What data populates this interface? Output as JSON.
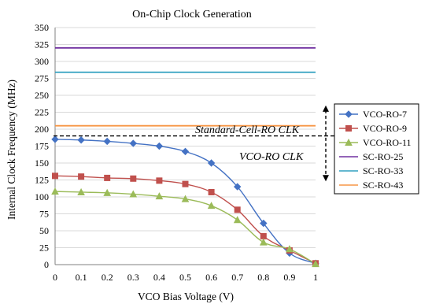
{
  "chart_data": {
    "type": "line",
    "title": "On-Chip Clock Generation",
    "xlabel": "VCO Bias Voltage (V)",
    "ylabel": "Internal Clock Frequency (MHz)",
    "xlim": [
      0,
      1
    ],
    "ylim": [
      0,
      350
    ],
    "x_ticks": [
      0,
      0.1,
      0.2,
      0.3,
      0.4,
      0.5,
      0.6,
      0.7,
      0.8,
      0.9,
      1
    ],
    "x_tick_labels": [
      "0",
      "0.1",
      "0.2",
      "0.3",
      "0.4",
      "0.5",
      "0.6",
      "0.7",
      "0.8",
      "0.9",
      "1"
    ],
    "y_ticks": [
      0,
      25,
      50,
      75,
      100,
      125,
      150,
      175,
      200,
      225,
      250,
      275,
      300,
      325,
      350
    ],
    "y_tick_labels": [
      "0",
      "25",
      "50",
      "75",
      "100",
      "125",
      "150",
      "175",
      "200",
      "225",
      "250",
      "275",
      "300",
      "325",
      "350"
    ],
    "grid": true,
    "legend_position": "right",
    "series": [
      {
        "name": "VCO-RO-7",
        "color": "#4472c4",
        "marker": "diamond",
        "x": [
          0,
          0.1,
          0.2,
          0.3,
          0.4,
          0.5,
          0.6,
          0.7,
          0.8,
          0.9,
          1
        ],
        "values": [
          185,
          184,
          182,
          179,
          175,
          167,
          150,
          115,
          61,
          17,
          2
        ]
      },
      {
        "name": "VCO-RO-9",
        "color": "#c0504d",
        "marker": "square",
        "x": [
          0,
          0.1,
          0.2,
          0.3,
          0.4,
          0.5,
          0.6,
          0.7,
          0.8,
          0.9,
          1
        ],
        "values": [
          131,
          130,
          128,
          127,
          124,
          119,
          107,
          81,
          42,
          21,
          2
        ]
      },
      {
        "name": "VCO-RO-11",
        "color": "#9bbb59",
        "marker": "triangle",
        "x": [
          0,
          0.1,
          0.2,
          0.3,
          0.4,
          0.5,
          0.6,
          0.7,
          0.8,
          0.9,
          1
        ],
        "values": [
          108,
          107,
          106,
          104,
          101,
          97,
          87,
          66,
          33,
          23,
          1
        ]
      },
      {
        "name": "SC-RO-25",
        "color": "#7030a0",
        "marker": "none",
        "x": [
          0,
          1
        ],
        "values": [
          320,
          320
        ]
      },
      {
        "name": "SC-RO-33",
        "color": "#31a0c0",
        "marker": "none",
        "x": [
          0,
          1
        ],
        "values": [
          284,
          284
        ]
      },
      {
        "name": "SC-RO-43",
        "color": "#f79646",
        "marker": "none",
        "x": [
          0,
          1
        ],
        "values": [
          205,
          205
        ]
      }
    ],
    "annotations": [
      {
        "text": "Standard-Cell-RO CLK",
        "style": "italic"
      },
      {
        "text": "VCO-RO CLK",
        "style": "italic"
      }
    ],
    "divider_value": 190
  }
}
